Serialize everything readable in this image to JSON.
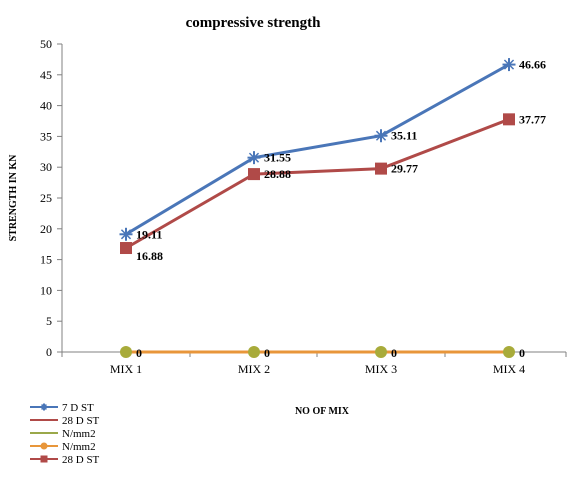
{
  "chart_data": {
    "type": "line",
    "title": "compressive  strength",
    "xlabel": "NO OF MIX",
    "ylabel": "STRENGTH IN KN",
    "categories": [
      "MIX 1",
      "MIX 2",
      "MIX 3",
      "MIX 4"
    ],
    "ylim": [
      0,
      50
    ],
    "yticks": [
      0,
      5,
      10,
      15,
      20,
      25,
      30,
      35,
      40,
      45,
      50
    ],
    "grid": false,
    "legend_position": "bottom-left",
    "series": [
      {
        "name": "7 D ST",
        "values": [
          19.11,
          31.55,
          35.11,
          46.66
        ],
        "color": "#4a76b8",
        "marker": "star",
        "labels": [
          "19.11",
          "31.55",
          "35.11",
          "46.66"
        ]
      },
      {
        "name": "28 D ST",
        "values": [
          16.88,
          28.88,
          29.77,
          37.77
        ],
        "color": "#b04a48",
        "marker": "square",
        "labels": [
          "16.88",
          "28.88",
          "29.77",
          "37.77"
        ]
      },
      {
        "name": "N/mm2",
        "values": [
          0,
          0,
          0,
          0
        ],
        "color": "#9aa84a",
        "marker": "none",
        "labels": []
      },
      {
        "name": "N/mm2",
        "values": [
          0,
          0,
          0,
          0
        ],
        "color": "#e8963a",
        "marker": "circle",
        "labels": [
          "0",
          "0",
          "0",
          "0"
        ]
      }
    ],
    "legend": [
      {
        "name": "7 D ST",
        "color": "#4a76b8",
        "marker": "star"
      },
      {
        "name": "28 D ST",
        "color": "#b04a48",
        "marker": "none"
      },
      {
        "name": "N/mm2",
        "color": "#9aa84a",
        "marker": "none"
      },
      {
        "name": "N/mm2",
        "color": "#e8963a",
        "marker": "circle"
      },
      {
        "name": "28 D ST",
        "color": "#b04a48",
        "marker": "square"
      }
    ]
  }
}
